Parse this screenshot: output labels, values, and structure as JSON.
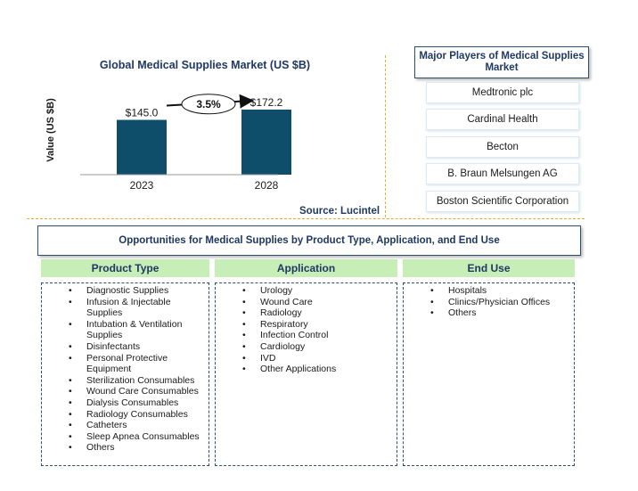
{
  "chart_data": {
    "type": "bar",
    "title": "Global Medical Supplies Market (US $B)",
    "ylabel": "Value (US $B)",
    "categories": [
      "2023",
      "2028"
    ],
    "values": [
      145.0,
      172.2
    ],
    "value_labels": [
      "$145.0",
      "$172.2"
    ],
    "growth_label": "3.5%",
    "ylim": [
      0,
      250
    ],
    "colors": {
      "bar": "#0f4e6b",
      "axis": "#999999"
    },
    "grid": false
  },
  "source": "Source: Lucintel",
  "players": {
    "title": "Major Players of Medical Supplies Market",
    "items": [
      "Medtronic plc",
      "Cardinal Health",
      "Becton",
      "B. Braun Melsungen AG",
      "Boston Scientific Corporation"
    ]
  },
  "opportunities": {
    "title": "Opportunities for Medical Supplies by Product Type, Application, and End Use",
    "columns": [
      {
        "header": "Product Type",
        "items": [
          "Diagnostic Supplies",
          "Infusion & Injectable Supplies",
          "Intubation & Ventilation Supplies",
          "Disinfectants",
          "Personal Protective Equipment",
          "Sterilization Consumables",
          "Wound Care Consumables",
          "Dialysis Consumables",
          "Radiology Consumables",
          "Catheters",
          "Sleep Apnea Consumables",
          "Others"
        ]
      },
      {
        "header": "Application",
        "items": [
          "Urology",
          "Wound Care",
          "Radiology",
          "Respiratory",
          "Infection Control",
          "Cardiology",
          "IVD",
          "Other Applications"
        ]
      },
      {
        "header": "End Use",
        "items": [
          "Hospitals",
          "Clinics/Physician Offices",
          "Others"
        ]
      }
    ]
  }
}
